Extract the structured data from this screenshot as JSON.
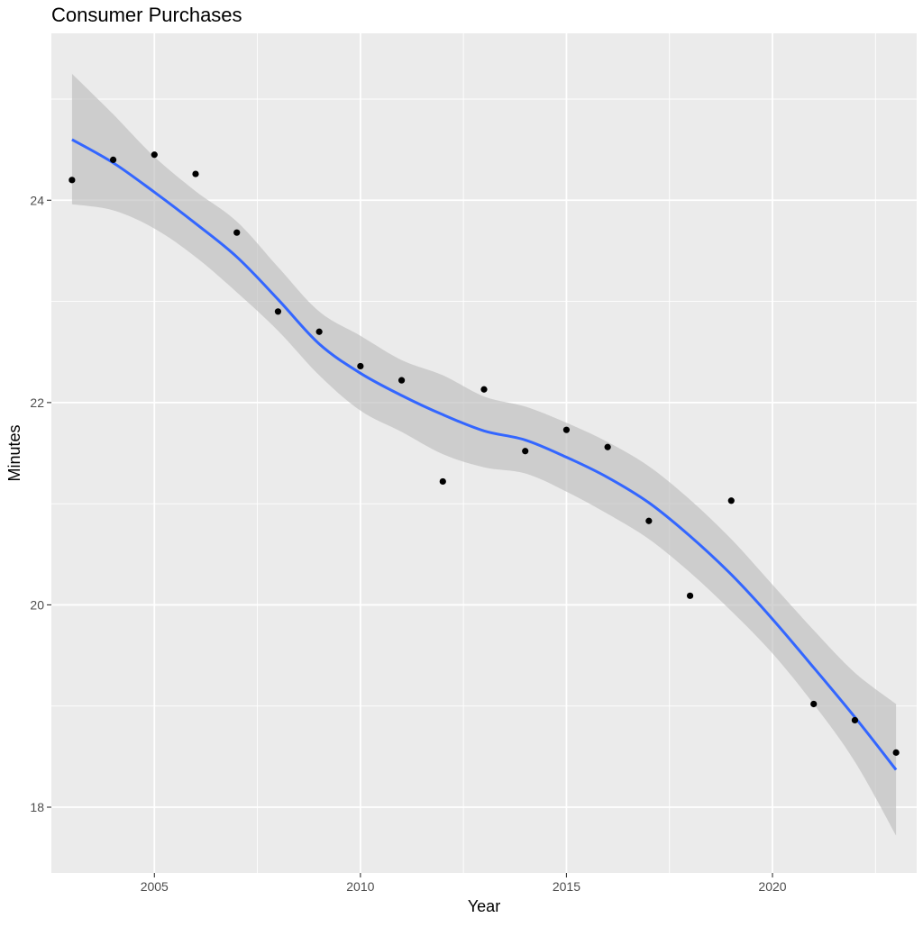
{
  "chart_data": {
    "type": "scatter",
    "title": "Consumer Purchases",
    "xlabel": "Year",
    "ylabel": "Minutes",
    "xlim": [
      2002.5,
      2023.5
    ],
    "ylim": [
      17.35,
      25.65
    ],
    "x_ticks": [
      2005,
      2010,
      2015,
      2020
    ],
    "x_tick_labels": [
      "2005",
      "2010",
      "2015",
      "2020"
    ],
    "y_ticks": [
      18,
      20,
      22,
      24
    ],
    "y_tick_labels": [
      "18",
      "20",
      "22",
      "24"
    ],
    "grid": true,
    "legend": "none",
    "colors": {
      "panel_background": "#ebebeb",
      "grid": "#ffffff",
      "points": "#000000",
      "smooth_line": "#3366ff",
      "confidence_band": "#bdbdbd"
    },
    "points": {
      "x": [
        2003,
        2004,
        2005,
        2006,
        2007,
        2008,
        2009,
        2010,
        2011,
        2012,
        2013,
        2014,
        2015,
        2016,
        2017,
        2018,
        2019,
        2021,
        2022,
        2023
      ],
      "y": [
        24.2,
        24.4,
        24.45,
        24.26,
        23.68,
        22.9,
        22.7,
        22.36,
        22.22,
        21.22,
        22.13,
        21.52,
        21.73,
        21.56,
        20.83,
        20.09,
        21.03,
        19.02,
        18.86,
        18.54
      ]
    },
    "smooth": {
      "x": [
        2003,
        2004,
        2005,
        2006,
        2007,
        2008,
        2009,
        2010,
        2011,
        2012,
        2013,
        2014,
        2015,
        2016,
        2017,
        2018,
        2019,
        2020,
        2021,
        2022,
        2023
      ],
      "y": [
        24.6,
        24.37,
        24.08,
        23.77,
        23.44,
        23.02,
        22.58,
        22.29,
        22.07,
        21.88,
        21.72,
        21.63,
        21.46,
        21.26,
        21.01,
        20.68,
        20.3,
        19.86,
        19.38,
        18.89,
        18.37
      ],
      "lower": [
        23.96,
        23.9,
        23.72,
        23.44,
        23.09,
        22.71,
        22.27,
        21.92,
        21.71,
        21.49,
        21.36,
        21.3,
        21.12,
        20.9,
        20.65,
        20.32,
        19.94,
        19.52,
        19.02,
        18.45,
        17.72
      ],
      "upper": [
        25.25,
        24.85,
        24.43,
        24.09,
        23.79,
        23.34,
        22.9,
        22.66,
        22.42,
        22.27,
        22.06,
        21.96,
        21.8,
        21.61,
        21.37,
        21.04,
        20.65,
        20.2,
        19.75,
        19.33,
        19.02
      ]
    }
  }
}
